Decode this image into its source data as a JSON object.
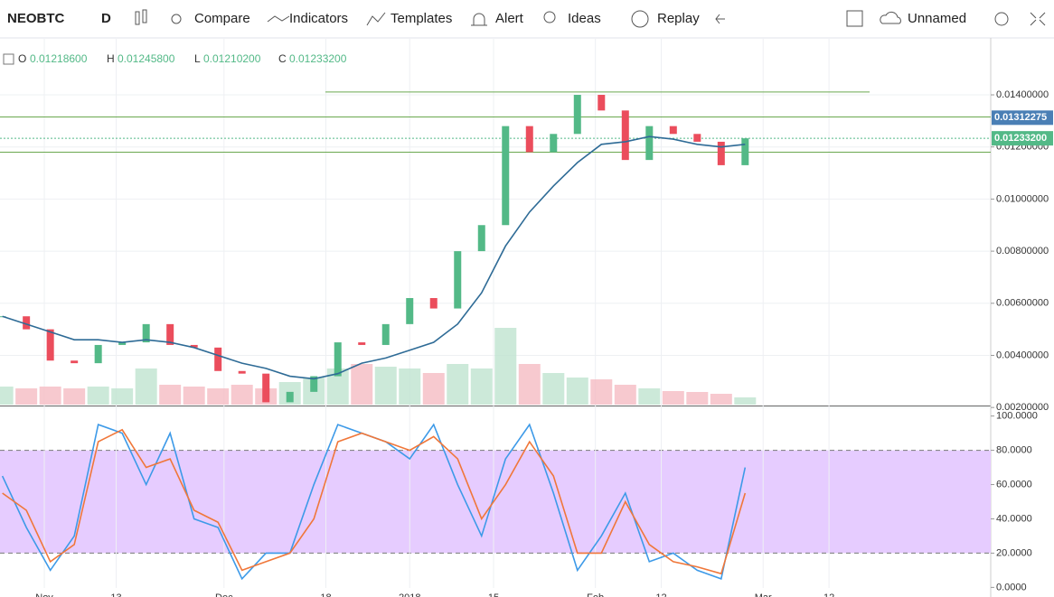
{
  "toolbar": {
    "symbol": "NEOBTC",
    "interval": "D",
    "buttons": [
      "Compare",
      "Indicators",
      "Templates",
      "Alert",
      "Ideas",
      "Replay"
    ],
    "layout": "Unnamed"
  },
  "legend": {
    "o_label": "O",
    "o": "0.01218600",
    "h_label": "H",
    "h": "0.01245800",
    "l_label": "L",
    "l": "0.01210200",
    "c_label": "C",
    "c": "0.01233200"
  },
  "chart_data": {
    "type": "candlestick",
    "x": [
      -7,
      -3,
      1,
      5,
      9,
      13,
      17,
      21,
      25,
      29,
      33,
      37,
      41,
      45,
      49,
      53,
      57,
      61,
      65,
      69,
      73,
      77,
      81,
      85,
      89,
      93,
      97,
      101,
      105,
      109,
      113,
      117
    ],
    "xlim": [
      -7.4,
      158
    ],
    "xticks": [
      {
        "value": 0,
        "label": "Nov"
      },
      {
        "value": 12,
        "label": "13"
      },
      {
        "value": 30,
        "label": "Dec"
      },
      {
        "value": 47,
        "label": "18"
      },
      {
        "value": 61,
        "label": "2018"
      },
      {
        "value": 75,
        "label": "15"
      },
      {
        "value": 92,
        "label": "Feb"
      },
      {
        "value": 103,
        "label": "12"
      },
      {
        "value": 120,
        "label": "Mar"
      },
      {
        "value": 131,
        "label": "12"
      }
    ],
    "series": [
      {
        "name": "close",
        "color": "#53b987",
        "down_color": "#eb4d5c",
        "values": [
          0.0055,
          0.005,
          0.0038,
          0.0037,
          0.0044,
          0.0045,
          0.0052,
          0.0044,
          0.0043,
          0.0034,
          0.0033,
          0.0022,
          0.0026,
          0.0032,
          0.0045,
          0.0044,
          0.0052,
          0.0062,
          0.0058,
          0.008,
          0.009,
          0.0128,
          0.0118,
          0.0125,
          0.014,
          0.0134,
          0.0115,
          0.0128,
          0.0125,
          0.0122,
          0.0113,
          0.012332
        ]
      },
      {
        "name": "ma",
        "color": "#2e6b96",
        "values": [
          0.0055,
          0.0052,
          0.0049,
          0.0046,
          0.0046,
          0.0045,
          0.0046,
          0.0045,
          0.0043,
          0.004,
          0.0037,
          0.0035,
          0.0032,
          0.0031,
          0.0033,
          0.0037,
          0.0039,
          0.0042,
          0.0045,
          0.0052,
          0.0064,
          0.0082,
          0.0095,
          0.0105,
          0.0114,
          0.0121,
          0.0122,
          0.0124,
          0.0123,
          0.0121,
          0.012,
          0.0121
        ]
      }
    ],
    "volume": [
      20,
      18,
      20,
      18,
      20,
      18,
      40,
      22,
      20,
      18,
      22,
      18,
      25,
      30,
      40,
      45,
      42,
      40,
      35,
      45,
      40,
      85,
      45,
      35,
      30,
      28,
      22,
      18,
      15,
      14,
      12,
      8
    ],
    "volume_ylim": [
      0,
      100
    ],
    "ylim": [
      0.00211,
      0.01615
    ],
    "yticks": [
      {
        "value": 0.014,
        "label": "0.01400000"
      },
      {
        "value": 0.012,
        "label": "0.01200000"
      },
      {
        "value": 0.01,
        "label": "0.01000000"
      },
      {
        "value": 0.008,
        "label": "0.00800000"
      },
      {
        "value": 0.006,
        "label": "0.00600000"
      },
      {
        "value": 0.004,
        "label": "0.00400000"
      },
      {
        "value": 0.002,
        "label": "0.00200000"
      }
    ],
    "hlines": [
      0.01411,
      0.01315,
      0.0118
    ],
    "badges": [
      {
        "value": 0.01312275,
        "label": "0.01312275",
        "color": "#4a7fb5"
      },
      {
        "value": 0.012332,
        "label": "0.01233200",
        "color": "#53b987"
      }
    ],
    "stoch": {
      "ylim": [
        -5.6,
        105.6
      ],
      "band": [
        20,
        80
      ],
      "band_color": "#e6ccff",
      "yticks": [
        {
          "value": 100,
          "label": "100.0000"
        },
        {
          "value": 80,
          "label": "80.0000"
        },
        {
          "value": 60,
          "label": "60.0000"
        },
        {
          "value": 40,
          "label": "40.0000"
        },
        {
          "value": 20,
          "label": "20.0000"
        },
        {
          "value": 0,
          "label": "0.0000"
        }
      ],
      "series": [
        {
          "name": "K",
          "color": "#3d9ae8",
          "values": [
            65,
            35,
            10,
            30,
            95,
            90,
            60,
            90,
            40,
            35,
            5,
            20,
            20,
            60,
            95,
            90,
            85,
            75,
            95,
            60,
            30,
            75,
            95,
            55,
            10,
            30,
            55,
            15,
            20,
            10,
            5,
            70
          ]
        },
        {
          "name": "D",
          "color": "#f0773a",
          "values": [
            55,
            45,
            15,
            25,
            85,
            92,
            70,
            75,
            45,
            38,
            10,
            15,
            20,
            40,
            85,
            90,
            85,
            80,
            88,
            75,
            40,
            60,
            85,
            65,
            20,
            20,
            50,
            25,
            15,
            12,
            8,
            55
          ]
        }
      ]
    }
  }
}
